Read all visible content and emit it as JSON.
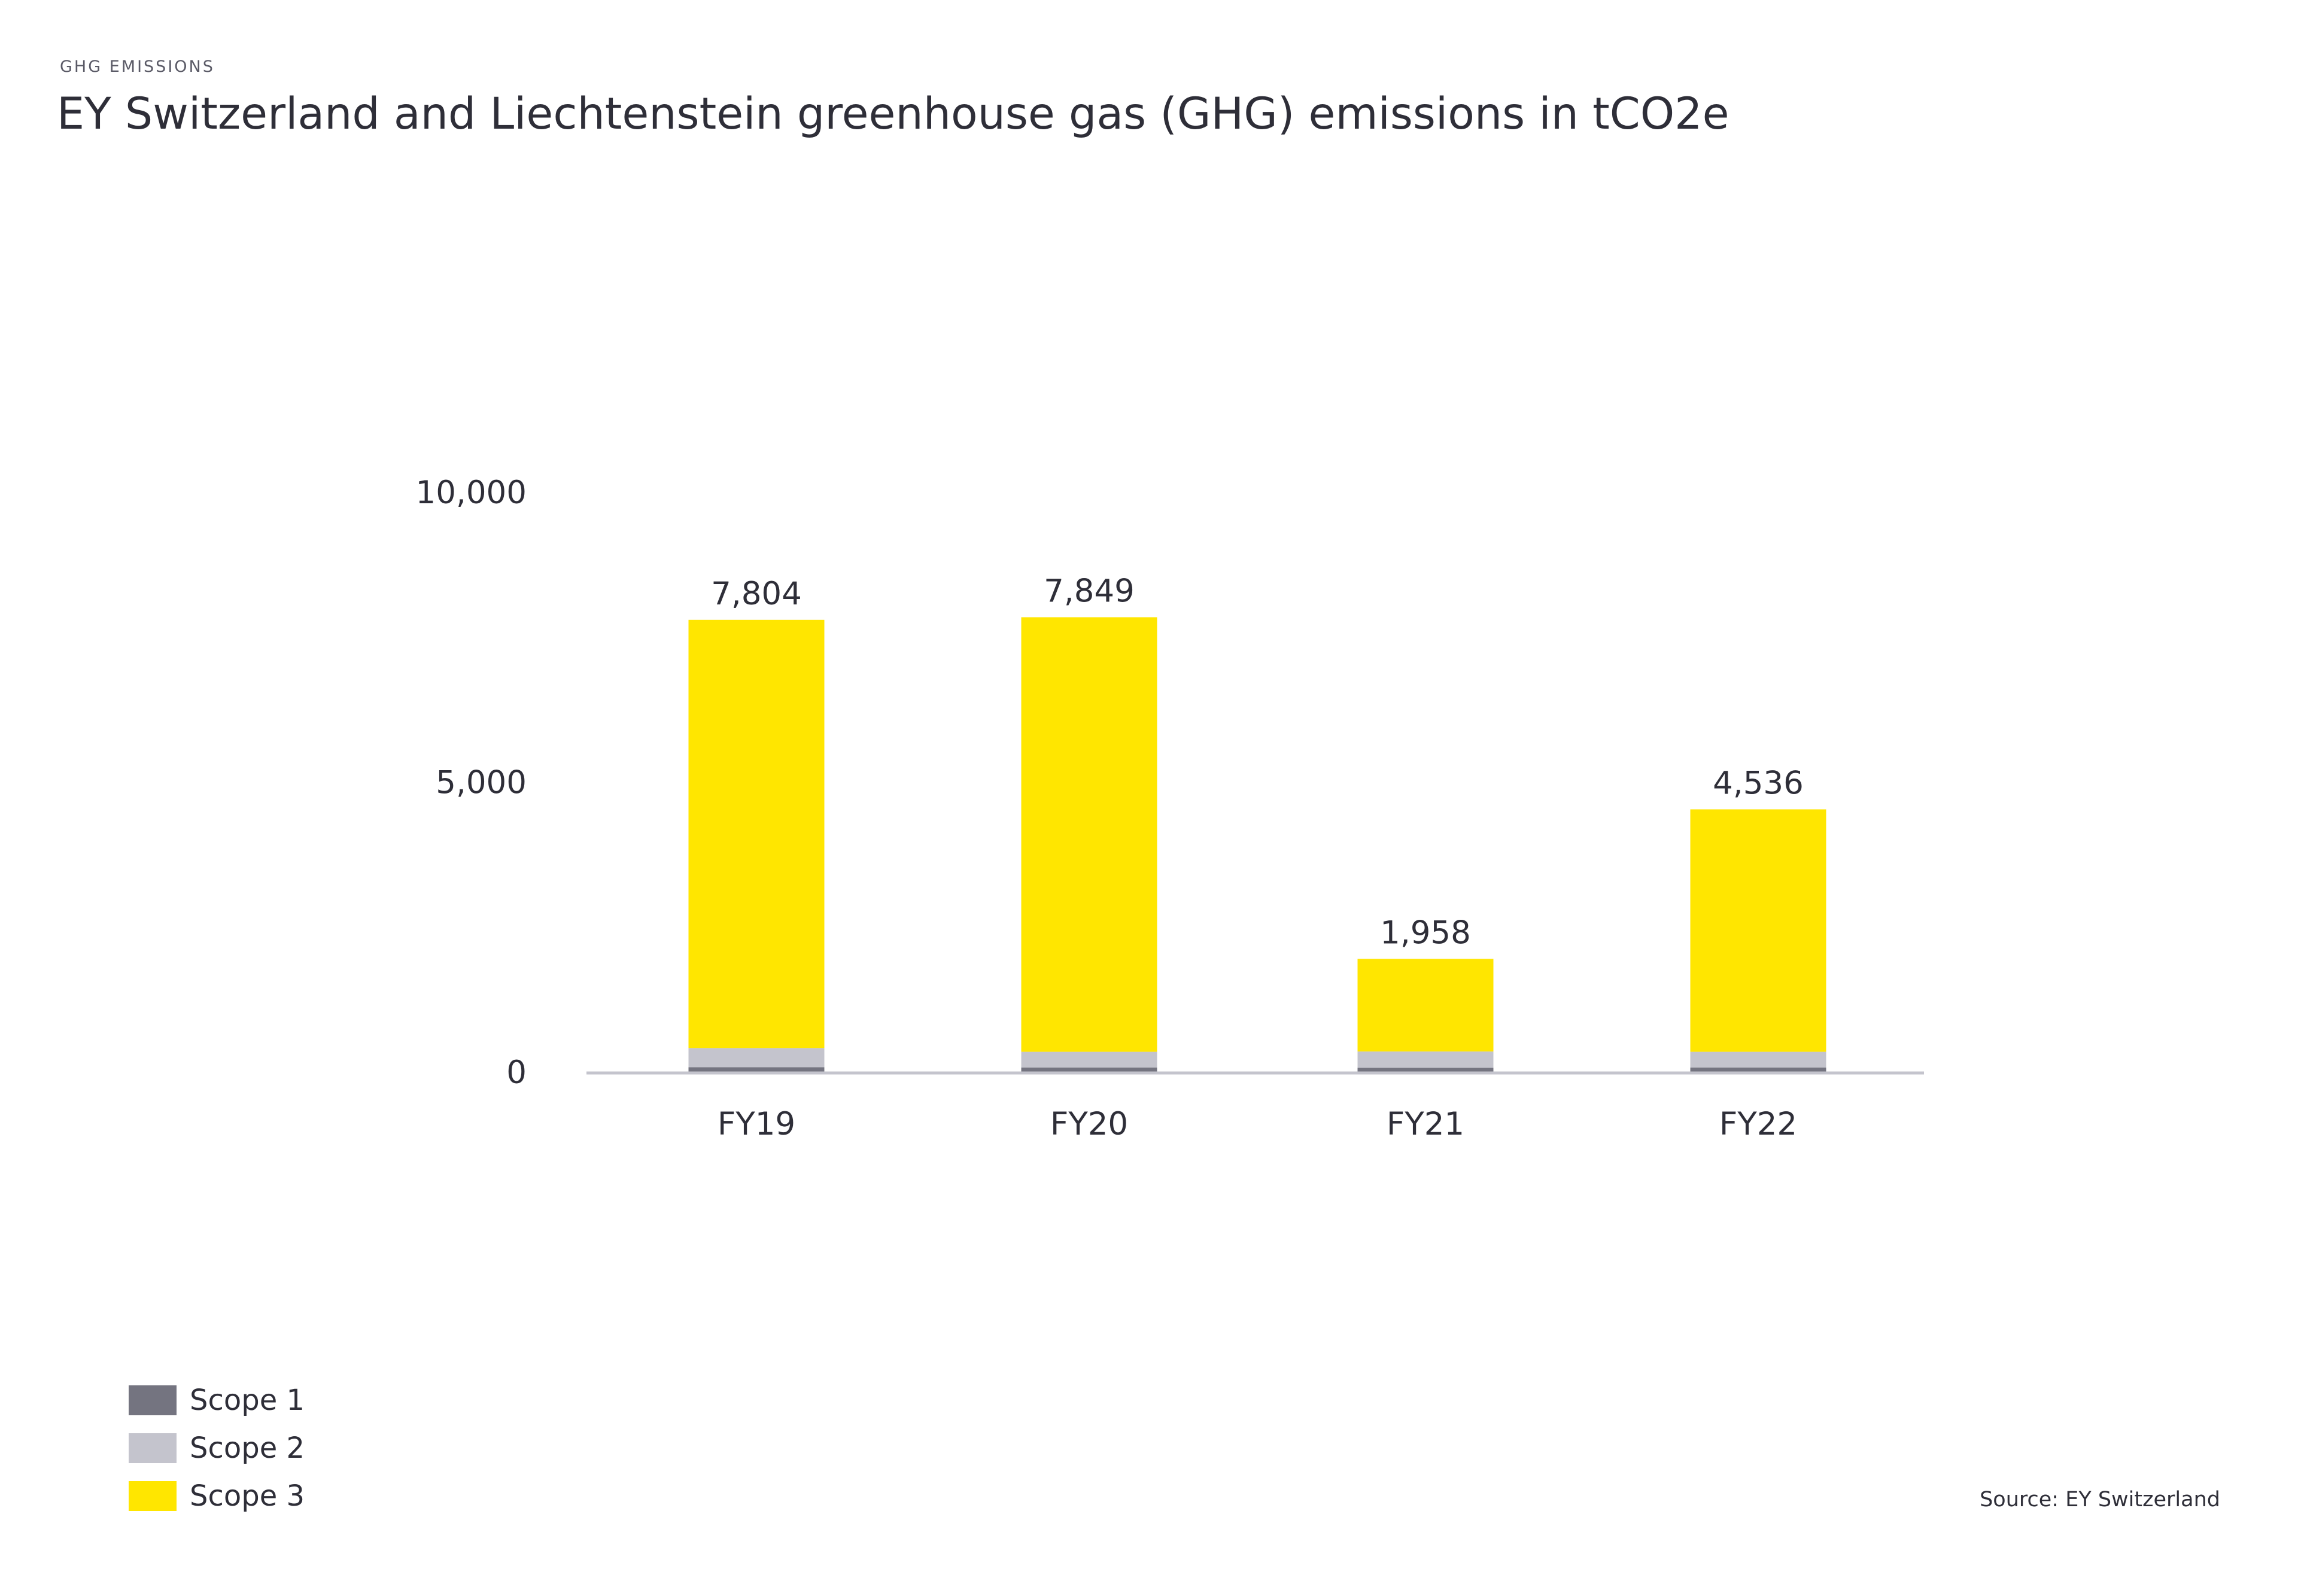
{
  "header": {
    "eyebrow": "GHG EMISSIONS",
    "title": "EY Switzerland and Liechtenstein greenhouse gas (GHG) emissions in tCO2e"
  },
  "source": "Source: EY Switzerland",
  "colors": {
    "scope1": "#747480",
    "scope2": "#c4c4cd",
    "scope3": "#ffe600",
    "axis": "#c4c4cd"
  },
  "chart_data": {
    "type": "bar",
    "stacked": true,
    "categories": [
      "FY19",
      "FY20",
      "FY21",
      "FY22"
    ],
    "series": [
      {
        "name": "Scope 1",
        "values": [
          90,
          85,
          80,
          85
        ]
      },
      {
        "name": "Scope 2",
        "values": [
          330,
          270,
          280,
          270
        ]
      },
      {
        "name": "Scope 3",
        "values": [
          7384,
          7494,
          1598,
          4181
        ]
      }
    ],
    "totals": [
      7804,
      7849,
      1958,
      4536
    ],
    "total_labels": [
      "7,804",
      "7,849",
      "1,958",
      "4,536"
    ],
    "ylim": [
      0,
      10000
    ],
    "yticks": [
      0,
      5000,
      10000
    ],
    "ytick_labels": [
      "0",
      "5,000",
      "10,000"
    ],
    "grid": false,
    "legend_position": "bottom-left"
  }
}
